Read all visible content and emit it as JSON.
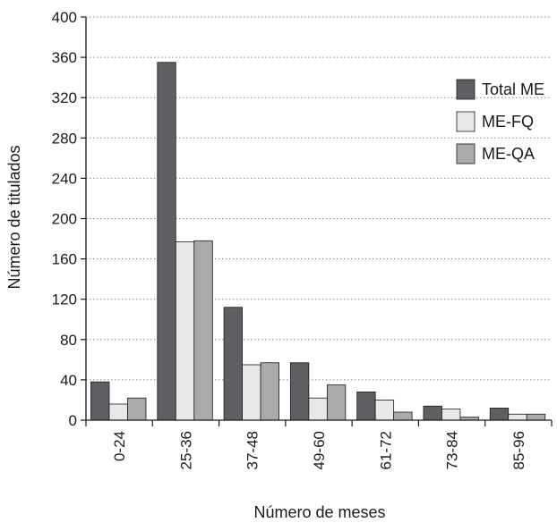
{
  "chart_data": {
    "type": "bar",
    "title": "",
    "xlabel": "Número de meses",
    "ylabel": "Número de titulados",
    "ylim": [
      0,
      400
    ],
    "yticks": [
      0,
      40,
      80,
      120,
      160,
      200,
      240,
      280,
      320,
      360,
      400
    ],
    "grid": "horizontal dotted",
    "legend_position": "top-right",
    "categories": [
      "0-24",
      "25-36",
      "37-48",
      "49-60",
      "61-72",
      "73-84",
      "85-96"
    ],
    "series": [
      {
        "name": "Total ME",
        "color": "#5f5f63",
        "values": [
          38,
          355,
          112,
          57,
          28,
          14,
          12
        ]
      },
      {
        "name": "ME-FQ",
        "color": "#e8e8e8",
        "values": [
          16,
          177,
          55,
          22,
          20,
          11,
          6
        ]
      },
      {
        "name": "ME-QA",
        "color": "#aaaaac",
        "values": [
          22,
          178,
          57,
          35,
          8,
          3,
          6
        ]
      }
    ]
  }
}
